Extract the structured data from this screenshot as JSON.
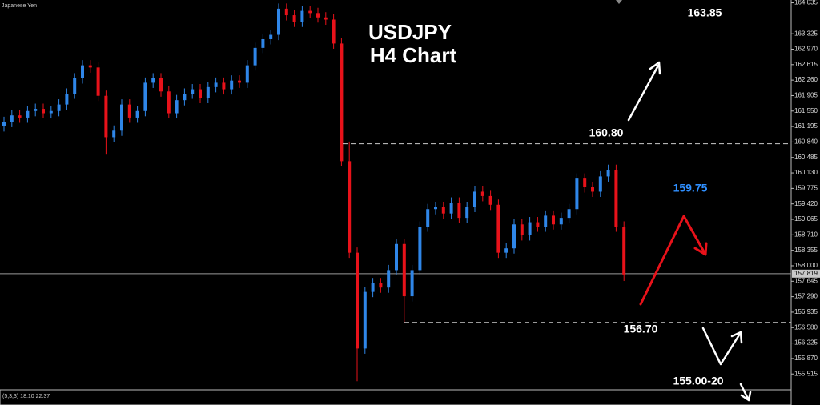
{
  "chart_data": {
    "type": "candlestick",
    "title": "USDJPY",
    "subtitle": "H4 Chart",
    "instrument_label": "Japanese Yen",
    "indicator_label": "(5,3,3) 18.10 22.37",
    "up_color": "#2f86e8",
    "down_color": "#e8121a",
    "ylim": [
      155.17,
      164.1
    ],
    "yticks": [
      {
        "value": 164.035,
        "label": "164.035"
      },
      {
        "value": 163.325,
        "label": "163.325"
      },
      {
        "value": 162.97,
        "label": "162.970"
      },
      {
        "value": 162.615,
        "label": "162.615"
      },
      {
        "value": 162.26,
        "label": "162.260"
      },
      {
        "value": 161.905,
        "label": "161.905"
      },
      {
        "value": 161.55,
        "label": "161.550"
      },
      {
        "value": 161.195,
        "label": "161.195"
      },
      {
        "value": 160.84,
        "label": "160.840"
      },
      {
        "value": 160.485,
        "label": "160.485"
      },
      {
        "value": 160.13,
        "label": "160.130"
      },
      {
        "value": 159.775,
        "label": "159.775"
      },
      {
        "value": 159.42,
        "label": "159.420"
      },
      {
        "value": 159.065,
        "label": "159.065"
      },
      {
        "value": 158.71,
        "label": "158.710"
      },
      {
        "value": 158.355,
        "label": "158.355"
      },
      {
        "value": 158.0,
        "label": "158.000"
      },
      {
        "value": 157.645,
        "label": "157.645"
      },
      {
        "value": 157.29,
        "label": "157.290"
      },
      {
        "value": 156.935,
        "label": "156.935"
      },
      {
        "value": 156.58,
        "label": "156.580"
      },
      {
        "value": 156.225,
        "label": "156.225"
      },
      {
        "value": 155.87,
        "label": "155.870"
      },
      {
        "value": 155.515,
        "label": "155.515"
      }
    ],
    "current_price": 157.819,
    "levels": [
      {
        "value": 160.8,
        "label": "160.80"
      },
      {
        "value": 156.7,
        "label": "156.70"
      }
    ],
    "annotations": [
      {
        "text": "163.85",
        "color": "#ffffff"
      },
      {
        "text": "159.75",
        "color": "#2f8fff"
      },
      {
        "text": "155.00-20",
        "color": "#ffffff"
      }
    ],
    "candles": [
      [
        161.2,
        161.42,
        161.08,
        161.3
      ],
      [
        161.3,
        161.57,
        161.18,
        161.45
      ],
      [
        161.45,
        161.57,
        161.28,
        161.4
      ],
      [
        161.4,
        161.67,
        161.28,
        161.55
      ],
      [
        161.55,
        161.72,
        161.43,
        161.6
      ],
      [
        161.6,
        161.72,
        161.38,
        161.5
      ],
      [
        161.5,
        161.67,
        161.38,
        161.55
      ],
      [
        161.55,
        161.82,
        161.43,
        161.7
      ],
      [
        161.7,
        162.07,
        161.58,
        161.95
      ],
      [
        161.95,
        162.42,
        161.83,
        162.3
      ],
      [
        162.3,
        162.72,
        162.18,
        162.6
      ],
      [
        162.6,
        162.72,
        162.43,
        162.55
      ],
      [
        162.55,
        162.67,
        161.78,
        161.9
      ],
      [
        161.9,
        162.02,
        160.55,
        160.95
      ],
      [
        160.95,
        161.22,
        160.83,
        161.1
      ],
      [
        161.1,
        161.82,
        160.98,
        161.7
      ],
      [
        161.7,
        161.82,
        161.28,
        161.4
      ],
      [
        161.4,
        161.67,
        161.28,
        161.55
      ],
      [
        161.55,
        162.32,
        161.43,
        162.2
      ],
      [
        162.2,
        162.42,
        162.08,
        162.3
      ],
      [
        162.3,
        162.42,
        161.88,
        162.0
      ],
      [
        162.0,
        162.12,
        161.38,
        161.5
      ],
      [
        161.5,
        161.92,
        161.38,
        161.8
      ],
      [
        161.8,
        162.07,
        161.68,
        161.95
      ],
      [
        161.95,
        162.17,
        161.83,
        162.05
      ],
      [
        162.05,
        162.17,
        161.73,
        161.85
      ],
      [
        161.85,
        162.22,
        161.73,
        162.1
      ],
      [
        162.1,
        162.32,
        161.98,
        162.2
      ],
      [
        162.2,
        162.32,
        161.93,
        162.05
      ],
      [
        162.05,
        162.37,
        161.93,
        162.25
      ],
      [
        162.25,
        162.37,
        162.08,
        162.2
      ],
      [
        162.2,
        162.72,
        162.08,
        162.6
      ],
      [
        162.6,
        163.12,
        162.48,
        163.0
      ],
      [
        163.0,
        163.32,
        162.88,
        163.2
      ],
      [
        163.2,
        163.42,
        163.08,
        163.3
      ],
      [
        163.3,
        164.02,
        163.18,
        163.9
      ],
      [
        163.9,
        164.02,
        163.63,
        163.75
      ],
      [
        163.75,
        163.87,
        163.48,
        163.6
      ],
      [
        163.6,
        163.97,
        163.48,
        163.85
      ],
      [
        163.85,
        163.97,
        163.68,
        163.8
      ],
      [
        163.8,
        163.92,
        163.58,
        163.7
      ],
      [
        163.7,
        163.82,
        163.53,
        163.65
      ],
      [
        163.65,
        163.77,
        162.98,
        163.1
      ],
      [
        163.1,
        163.22,
        160.28,
        160.4
      ],
      [
        160.4,
        160.85,
        158.18,
        158.3
      ],
      [
        158.3,
        158.42,
        155.35,
        156.1
      ],
      [
        156.1,
        157.52,
        155.98,
        157.4
      ],
      [
        157.4,
        157.72,
        157.28,
        157.6
      ],
      [
        157.6,
        157.72,
        157.38,
        157.5
      ],
      [
        157.5,
        158.02,
        157.38,
        157.9
      ],
      [
        157.9,
        158.62,
        157.78,
        158.5
      ],
      [
        158.5,
        158.62,
        156.7,
        157.3
      ],
      [
        157.3,
        158.02,
        157.18,
        157.9
      ],
      [
        157.9,
        159.02,
        157.78,
        158.9
      ],
      [
        158.9,
        159.42,
        158.78,
        159.3
      ],
      [
        159.3,
        159.47,
        159.18,
        159.35
      ],
      [
        159.35,
        159.47,
        159.08,
        159.2
      ],
      [
        159.2,
        159.57,
        159.08,
        159.45
      ],
      [
        159.45,
        159.57,
        158.98,
        159.1
      ],
      [
        159.1,
        159.47,
        158.98,
        159.35
      ],
      [
        159.35,
        159.82,
        159.23,
        159.7
      ],
      [
        159.7,
        159.82,
        159.48,
        159.6
      ],
      [
        159.6,
        159.72,
        159.28,
        159.4
      ],
      [
        159.4,
        159.52,
        158.18,
        158.3
      ],
      [
        158.3,
        158.52,
        158.18,
        158.4
      ],
      [
        158.4,
        159.07,
        158.28,
        158.95
      ],
      [
        158.95,
        159.07,
        158.58,
        158.7
      ],
      [
        158.7,
        159.12,
        158.58,
        159.0
      ],
      [
        159.0,
        159.12,
        158.78,
        158.9
      ],
      [
        158.9,
        159.27,
        158.78,
        159.15
      ],
      [
        159.15,
        159.27,
        158.83,
        158.95
      ],
      [
        158.95,
        159.22,
        158.83,
        159.1
      ],
      [
        159.1,
        159.42,
        158.98,
        159.3
      ],
      [
        159.3,
        160.12,
        159.18,
        160.0
      ],
      [
        160.0,
        160.12,
        159.68,
        159.8
      ],
      [
        159.8,
        159.92,
        159.58,
        159.7
      ],
      [
        159.7,
        160.17,
        159.58,
        160.05
      ],
      [
        160.05,
        160.32,
        159.93,
        160.2
      ],
      [
        160.2,
        160.32,
        158.78,
        158.9
      ],
      [
        158.9,
        159.02,
        157.65,
        157.8
      ]
    ]
  }
}
